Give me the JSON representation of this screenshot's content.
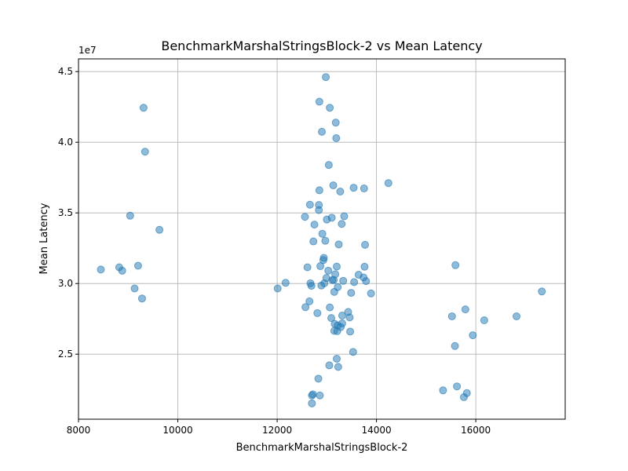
{
  "chart_data": {
    "type": "scatter",
    "title": "BenchmarkMarshalStringsBlock-2 vs Mean Latency",
    "xlabel": "BenchmarkMarshalStringsBlock-2",
    "ylabel": "Mean Latency",
    "y_offset_label": "1e7",
    "xlim": [
      8000,
      17800
    ],
    "ylim": [
      20400000,
      45900000
    ],
    "x_ticks": [
      8000,
      10000,
      12000,
      14000,
      16000
    ],
    "x_tick_labels": [
      "8000",
      "10000",
      "12000",
      "14000",
      "16000"
    ],
    "y_ticks": [
      25000000,
      30000000,
      35000000,
      40000000,
      45000000
    ],
    "y_tick_labels": [
      "2.5",
      "3.0",
      "3.5",
      "4.0",
      "4.5"
    ],
    "grid": true,
    "marker_color": "#1f77b4",
    "marker_alpha": 0.5,
    "points": [
      [
        8450,
        30990000
      ],
      [
        8820,
        31150000
      ],
      [
        8880,
        30910000
      ],
      [
        9040,
        34800000
      ],
      [
        9130,
        29650000
      ],
      [
        9200,
        31260000
      ],
      [
        9280,
        28940000
      ],
      [
        9310,
        42440000
      ],
      [
        9340,
        39330000
      ],
      [
        9630,
        33800000
      ],
      [
        12010,
        29650000
      ],
      [
        12170,
        30050000
      ],
      [
        12560,
        34720000
      ],
      [
        12570,
        28330000
      ],
      [
        12610,
        31150000
      ],
      [
        12650,
        28740000
      ],
      [
        12660,
        35580000
      ],
      [
        12670,
        30020000
      ],
      [
        12690,
        29840000
      ],
      [
        12700,
        21520000
      ],
      [
        12700,
        22080000
      ],
      [
        12720,
        22160000
      ],
      [
        12730,
        32980000
      ],
      [
        12750,
        34170000
      ],
      [
        12810,
        27910000
      ],
      [
        12830,
        23270000
      ],
      [
        12840,
        35200000
      ],
      [
        12840,
        35560000
      ],
      [
        12850,
        36600000
      ],
      [
        12850,
        42870000
      ],
      [
        12860,
        22080000
      ],
      [
        12870,
        31230000
      ],
      [
        12890,
        29860000
      ],
      [
        12900,
        40740000
      ],
      [
        12910,
        33520000
      ],
      [
        12930,
        31660000
      ],
      [
        12940,
        31820000
      ],
      [
        12950,
        30020000
      ],
      [
        12970,
        33030000
      ],
      [
        12980,
        44610000
      ],
      [
        12990,
        30390000
      ],
      [
        13000,
        34530000
      ],
      [
        13030,
        30910000
      ],
      [
        13040,
        38390000
      ],
      [
        13050,
        24210000
      ],
      [
        13060,
        42440000
      ],
      [
        13060,
        28310000
      ],
      [
        13090,
        27560000
      ],
      [
        13100,
        34660000
      ],
      [
        13110,
        30250000
      ],
      [
        13130,
        36950000
      ],
      [
        13140,
        30250000
      ],
      [
        13150,
        29410000
      ],
      [
        13150,
        26650000
      ],
      [
        13160,
        27140000
      ],
      [
        13170,
        30660000
      ],
      [
        13180,
        41390000
      ],
      [
        13190,
        40290000
      ],
      [
        13200,
        31200000
      ],
      [
        13200,
        24680000
      ],
      [
        13210,
        26630000
      ],
      [
        13220,
        27040000
      ],
      [
        13220,
        29750000
      ],
      [
        13230,
        24100000
      ],
      [
        13240,
        32770000
      ],
      [
        13270,
        36510000
      ],
      [
        13280,
        26920000
      ],
      [
        13300,
        34220000
      ],
      [
        13310,
        27730000
      ],
      [
        13310,
        27180000
      ],
      [
        13330,
        30190000
      ],
      [
        13350,
        34760000
      ],
      [
        13430,
        27990000
      ],
      [
        13460,
        27600000
      ],
      [
        13470,
        26600000
      ],
      [
        13490,
        29340000
      ],
      [
        13530,
        25160000
      ],
      [
        13540,
        36780000
      ],
      [
        13550,
        30100000
      ],
      [
        13640,
        30620000
      ],
      [
        13740,
        30430000
      ],
      [
        13750,
        36730000
      ],
      [
        13760,
        31190000
      ],
      [
        13770,
        32740000
      ],
      [
        13790,
        30170000
      ],
      [
        13890,
        29300000
      ],
      [
        14240,
        37110000
      ],
      [
        15340,
        22440000
      ],
      [
        15520,
        27680000
      ],
      [
        15580,
        25580000
      ],
      [
        15590,
        31300000
      ],
      [
        15620,
        22720000
      ],
      [
        15760,
        21960000
      ],
      [
        15790,
        28170000
      ],
      [
        15820,
        22250000
      ],
      [
        15940,
        26340000
      ],
      [
        16170,
        27400000
      ],
      [
        16820,
        27680000
      ],
      [
        17330,
        29440000
      ]
    ]
  }
}
